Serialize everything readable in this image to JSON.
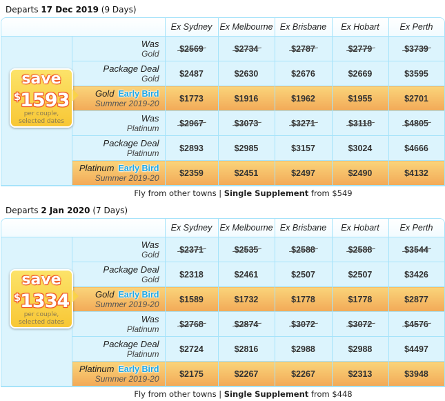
{
  "columns": [
    "Ex Sydney",
    "Ex Melbourne",
    "Ex Brisbane",
    "Ex Hobart",
    "Ex Perth"
  ],
  "early_bird_tag": "Early Bird",
  "badge": {
    "save": "save",
    "currency": "$",
    "per_couple": "per couple,",
    "selected_dates": "selected dates"
  },
  "footer": {
    "fly": "Fly from other towns",
    "sep": " | ",
    "supp": "Single Supplement",
    "from": " from "
  },
  "sections": [
    {
      "departs": "Departs ",
      "date": "17 Dec 2019",
      "days": " (9 Days)",
      "save_amount": "1593",
      "supplement": "$549",
      "rows": [
        {
          "a": "Was",
          "b": "Gold",
          "type": "was",
          "values": [
            "$2569",
            "$2734",
            "$2787",
            "$2779",
            "$3739"
          ]
        },
        {
          "a": "Package Deal",
          "b": "Gold",
          "type": "deal",
          "values": [
            "$2487",
            "$2630",
            "$2676",
            "$2669",
            "$3595"
          ]
        },
        {
          "a": "Gold",
          "b": "Summer 2019-20",
          "type": "eb",
          "values": [
            "$1773",
            "$1916",
            "$1962",
            "$1955",
            "$2701"
          ]
        },
        {
          "a": "Was",
          "b": "Platinum",
          "type": "was",
          "values": [
            "$2967",
            "$3073",
            "$3271",
            "$3118",
            "$4805"
          ]
        },
        {
          "a": "Package Deal",
          "b": "Platinum",
          "type": "deal",
          "values": [
            "$2893",
            "$2985",
            "$3157",
            "$3024",
            "$4666"
          ]
        },
        {
          "a": "Platinum",
          "b": "Summer 2019-20",
          "type": "eb",
          "values": [
            "$2359",
            "$2451",
            "$2497",
            "$2490",
            "$4132"
          ]
        }
      ]
    },
    {
      "departs": "Departs ",
      "date": "2 Jan 2020",
      "days": " (7 Days)",
      "save_amount": "1334",
      "supplement": "$448",
      "rows": [
        {
          "a": "Was",
          "b": "Gold",
          "type": "was",
          "values": [
            "$2371",
            "$2535",
            "$2588",
            "$2588",
            "$3544"
          ]
        },
        {
          "a": "Package Deal",
          "b": "Gold",
          "type": "deal",
          "values": [
            "$2318",
            "$2461",
            "$2507",
            "$2507",
            "$3426"
          ]
        },
        {
          "a": "Gold",
          "b": "Summer 2019-20",
          "type": "eb",
          "values": [
            "$1589",
            "$1732",
            "$1778",
            "$1778",
            "$2877"
          ]
        },
        {
          "a": "Was",
          "b": "Platinum",
          "type": "was",
          "values": [
            "$2768",
            "$2874",
            "$3072",
            "$3072",
            "$4576"
          ]
        },
        {
          "a": "Package Deal",
          "b": "Platinum",
          "type": "deal",
          "values": [
            "$2724",
            "$2816",
            "$2988",
            "$2988",
            "$4497"
          ]
        },
        {
          "a": "Platinum",
          "b": "Summer 2019-20",
          "type": "eb",
          "values": [
            "$2175",
            "$2267",
            "$2267",
            "$2313",
            "$3948"
          ]
        }
      ]
    }
  ]
}
